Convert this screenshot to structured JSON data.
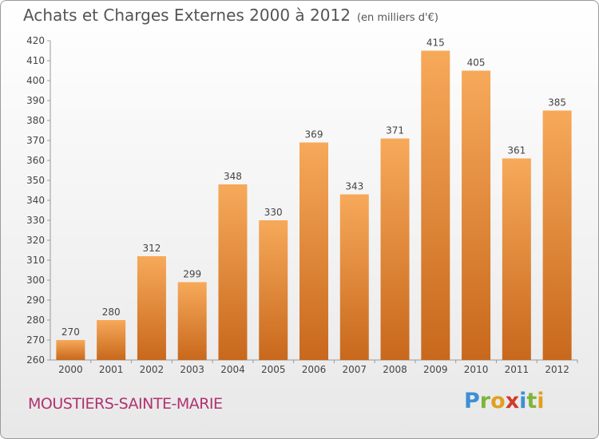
{
  "chart_data": {
    "type": "bar",
    "title": "Achats et Charges Externes 2000 à 2012",
    "subtitle": "(en milliers d'€)",
    "categories": [
      "2000",
      "2001",
      "2002",
      "2003",
      "2004",
      "2005",
      "2006",
      "2007",
      "2008",
      "2009",
      "2010",
      "2011",
      "2012"
    ],
    "values": [
      270,
      280,
      312,
      299,
      348,
      330,
      369,
      343,
      371,
      415,
      405,
      361,
      385
    ],
    "ylim": [
      260,
      420
    ],
    "yticks": [
      260,
      270,
      280,
      290,
      300,
      310,
      320,
      330,
      340,
      350,
      360,
      370,
      380,
      390,
      400,
      410,
      420
    ],
    "grid": false,
    "bar_color_light": "#f7a95a",
    "bar_color_dark": "#c8681c"
  },
  "footer": {
    "commune": "MOUSTIERS-SAINTE-MARIE"
  },
  "brand": {
    "letters": [
      "P",
      "r",
      "o",
      "x",
      "i",
      "t",
      "i"
    ],
    "colors": [
      "#3d8fd4",
      "#7cb53a",
      "#e0a020",
      "#d33a2c",
      "#3d8fd4",
      "#7cb53a",
      "#e0a020"
    ]
  }
}
